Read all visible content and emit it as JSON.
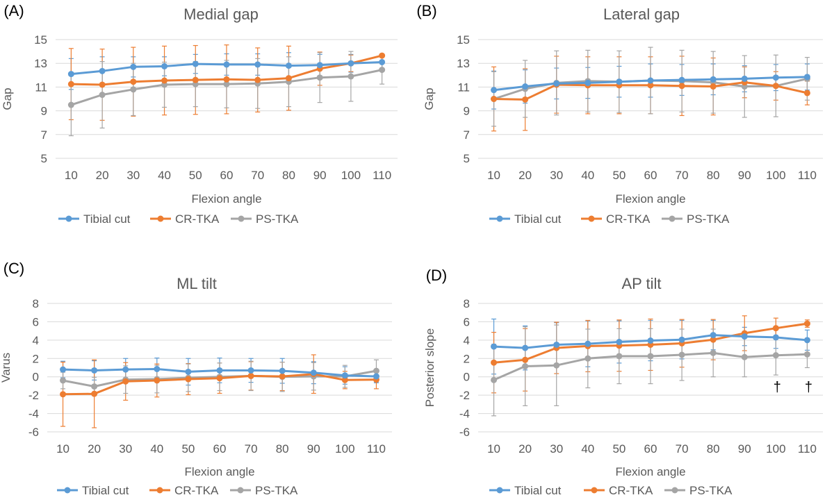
{
  "legend_labels": [
    "Tibial cut",
    "CR-TKA",
    "PS-TKA"
  ],
  "chart_data": [
    {
      "type": "line",
      "panel_label": "(A)",
      "title": "Medial gap",
      "xlabel": "Flexion angle",
      "ylabel": "Gap",
      "ylim": [
        5,
        15
      ],
      "yticks": [
        5,
        7,
        9,
        11,
        13,
        15
      ],
      "grid": true,
      "legend": "bottom",
      "x": [
        10,
        20,
        30,
        40,
        50,
        60,
        70,
        80,
        90,
        100,
        110
      ],
      "series": [
        {
          "name": "Tibial cut",
          "color": "#5b9bd5",
          "values": [
            12.1,
            12.35,
            12.7,
            12.75,
            12.95,
            12.9,
            12.9,
            12.8,
            12.85,
            13.0,
            13.1
          ],
          "error": [
            1.3,
            1.2,
            0.85,
            0.8,
            0.8,
            0.9,
            0.9,
            1.1,
            0.9,
            0.75,
            0.6
          ]
        },
        {
          "name": "CR-TKA",
          "color": "#ed7d31",
          "values": [
            11.25,
            11.2,
            11.45,
            11.55,
            11.6,
            11.65,
            11.6,
            11.75,
            12.55,
            13.0,
            13.65
          ],
          "error": [
            3.0,
            3.0,
            2.9,
            2.9,
            2.9,
            2.9,
            2.7,
            2.7,
            1.4,
            0.7,
            0.0
          ]
        },
        {
          "name": "PS-TKA",
          "color": "#a5a5a5",
          "values": [
            9.5,
            10.35,
            10.8,
            11.2,
            11.25,
            11.25,
            11.3,
            11.45,
            11.8,
            11.9,
            12.45
          ],
          "error": [
            2.6,
            2.8,
            2.2,
            1.9,
            1.9,
            2.0,
            2.1,
            2.1,
            2.1,
            2.1,
            1.2
          ]
        }
      ]
    },
    {
      "type": "line",
      "panel_label": "(B)",
      "title": "Lateral gap",
      "xlabel": "Flexion angle",
      "ylabel": "Gap",
      "ylim": [
        5,
        15
      ],
      "yticks": [
        5,
        7,
        9,
        11,
        13,
        15
      ],
      "grid": true,
      "legend": "bottom",
      "x": [
        10,
        20,
        30,
        40,
        50,
        60,
        70,
        80,
        90,
        100,
        110
      ],
      "series": [
        {
          "name": "Tibial cut",
          "color": "#5b9bd5",
          "values": [
            10.75,
            11.05,
            11.3,
            11.35,
            11.45,
            11.55,
            11.6,
            11.65,
            11.7,
            11.8,
            11.85
          ],
          "error": [
            1.6,
            1.4,
            1.3,
            1.3,
            1.3,
            1.4,
            1.3,
            1.3,
            1.1,
            1.1,
            1.1
          ]
        },
        {
          "name": "CR-TKA",
          "color": "#ed7d31",
          "values": [
            10.0,
            9.95,
            11.2,
            11.15,
            11.15,
            11.15,
            11.1,
            11.05,
            11.4,
            11.1,
            10.5
          ],
          "error": [
            2.7,
            2.6,
            2.4,
            2.4,
            2.4,
            2.4,
            2.5,
            2.4,
            1.3,
            1.2,
            1.0
          ]
        },
        {
          "name": "PS-TKA",
          "color": "#a5a5a5",
          "values": [
            10.0,
            10.85,
            11.35,
            11.5,
            11.45,
            11.55,
            11.5,
            11.4,
            11.05,
            11.1,
            11.7
          ],
          "error": [
            2.3,
            2.4,
            2.7,
            2.6,
            2.6,
            2.8,
            2.6,
            2.6,
            2.6,
            2.6,
            1.8
          ]
        }
      ]
    },
    {
      "type": "line",
      "panel_label": "(C)",
      "title": "ML tilt",
      "xlabel": "Flexion angle",
      "ylabel": "Varus",
      "ylim": [
        -6,
        8
      ],
      "yticks": [
        -6,
        -4,
        -2,
        0,
        2,
        4,
        6,
        8
      ],
      "grid": true,
      "legend": "bottom",
      "x": [
        10,
        20,
        30,
        40,
        50,
        60,
        70,
        80,
        90,
        100,
        110
      ],
      "series": [
        {
          "name": "Tibial cut",
          "color": "#5b9bd5",
          "values": [
            0.8,
            0.7,
            0.8,
            0.85,
            0.55,
            0.7,
            0.7,
            0.65,
            0.45,
            0.15,
            0.05
          ],
          "error": [
            0.9,
            1.05,
            1.2,
            1.2,
            1.45,
            1.35,
            1.3,
            1.35,
            1.2,
            0.95,
            0.7
          ]
        },
        {
          "name": "CR-TKA",
          "color": "#ed7d31",
          "values": [
            -1.9,
            -1.85,
            -0.5,
            -0.4,
            -0.25,
            -0.15,
            0.1,
            0.05,
            0.3,
            -0.35,
            -0.3
          ],
          "error": [
            3.5,
            3.7,
            2.05,
            1.8,
            1.7,
            1.65,
            1.55,
            1.55,
            2.1,
            0.95,
            1.0
          ]
        },
        {
          "name": "PS-TKA",
          "color": "#a5a5a5",
          "values": [
            -0.4,
            -1.05,
            -0.3,
            -0.25,
            -0.1,
            0.0,
            0.1,
            0.0,
            0.05,
            0.05,
            0.65
          ],
          "error": [
            0.9,
            1.0,
            1.5,
            1.5,
            1.5,
            1.5,
            1.6,
            1.6,
            1.5,
            1.2,
            1.2
          ]
        }
      ]
    },
    {
      "type": "line",
      "panel_label": "(D)",
      "title": "AP tilt",
      "xlabel": "Flexion angle",
      "ylabel": "Posterior slope",
      "ylim": [
        -6,
        8
      ],
      "yticks": [
        -6,
        -4,
        -2,
        0,
        2,
        4,
        6,
        8
      ],
      "grid": true,
      "legend": "bottom",
      "x": [
        10,
        20,
        30,
        40,
        50,
        60,
        70,
        80,
        90,
        100,
        110
      ],
      "annotations": [
        {
          "x": 100,
          "text": "†"
        },
        {
          "x": 110,
          "text": "†"
        }
      ],
      "series": [
        {
          "name": "Tibial cut",
          "color": "#5b9bd5",
          "values": [
            3.3,
            3.15,
            3.5,
            3.6,
            3.8,
            3.95,
            4.05,
            4.55,
            4.4,
            4.3,
            4.0
          ],
          "error": [
            3.0,
            2.4,
            2.4,
            2.5,
            2.3,
            2.2,
            2.1,
            1.6,
            1.0,
            1.2,
            1.1
          ]
        },
        {
          "name": "CR-TKA",
          "color": "#ed7d31",
          "values": [
            1.55,
            1.85,
            3.15,
            3.35,
            3.4,
            3.5,
            3.65,
            4.05,
            4.75,
            5.3,
            5.8
          ],
          "error": [
            3.3,
            3.4,
            2.8,
            2.8,
            2.8,
            2.8,
            2.6,
            2.2,
            1.9,
            1.1,
            0.4
          ]
        },
        {
          "name": "PS-TKA",
          "color": "#a5a5a5",
          "values": [
            -0.35,
            1.15,
            1.25,
            2.0,
            2.25,
            2.25,
            2.4,
            2.6,
            2.15,
            2.35,
            2.45
          ],
          "error": [
            3.9,
            4.3,
            4.4,
            3.2,
            3.0,
            3.0,
            2.8,
            2.6,
            2.15,
            2.15,
            1.45
          ]
        }
      ]
    }
  ]
}
